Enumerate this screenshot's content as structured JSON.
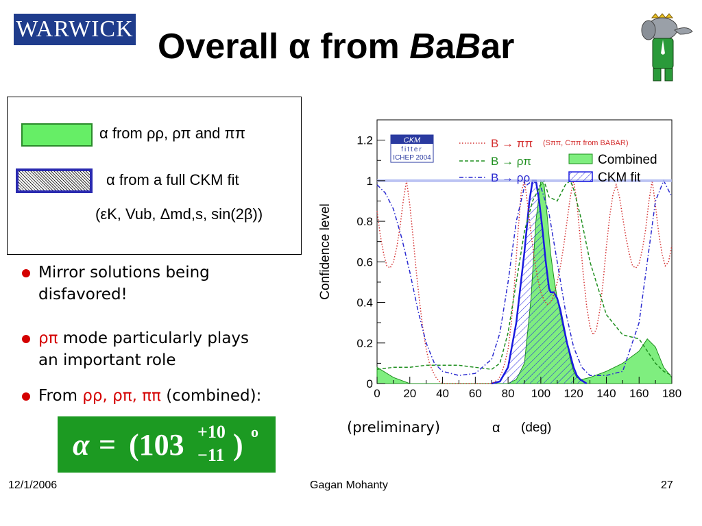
{
  "header": {
    "logo_text": "WARWICK",
    "title_prefix": "Overall α from ",
    "title_babar_1": "B",
    "title_babar_2": "a",
    "title_babar_3": "B",
    "title_babar_4": "ar"
  },
  "legend": {
    "item1": "α from ρρ, ρπ and ππ",
    "item2": "α from a full CKM fit",
    "item2_sub": "(εK, Vub, Δmd,s, sin(2β))"
  },
  "bullets": [
    {
      "text_a": "Mirror solutions being",
      "text_b": "disfavored!"
    },
    {
      "highlight": "ρπ",
      "text_a": " mode particularly plays",
      "text_b": "an important role"
    },
    {
      "text_a": "From ",
      "highlight": "ρρ, ρπ, ππ",
      "text_b": " (combined):"
    }
  ],
  "result": {
    "alpha": "α",
    "eq": "=",
    "value": "(103",
    "plus": "+10",
    "minus": "−11",
    "close": ")",
    "unit": "o"
  },
  "footer": {
    "date": "12/1/2006",
    "author": "Gagan Mohanty",
    "page": "27"
  },
  "chart_note": "(preliminary)",
  "chart_data": {
    "type": "line",
    "xlabel": "α",
    "xunit": "(deg)",
    "ylabel": "Confidence level",
    "xlim": [
      0,
      180
    ],
    "ylim": [
      0,
      1.3
    ],
    "x_ticks": [
      0,
      20,
      40,
      60,
      80,
      100,
      120,
      140,
      160,
      180
    ],
    "y_ticks": [
      0,
      0.2,
      0.4,
      0.6,
      0.8,
      1,
      1.2
    ],
    "y_tick_labels": [
      "0",
      "0.2",
      "0.4",
      "0.6",
      "0.8",
      "1",
      "1.2"
    ],
    "ckmfitter": {
      "line1": "CKM",
      "line2": "fitter",
      "line3": "ICHEP 2004"
    },
    "legend": {
      "pipi": "B → ππ",
      "pipi_note": "(Sππ, Cππ from BABAR)",
      "rhopi": "B → ρπ",
      "rhorho": "B → ρρ",
      "combined": "Combined",
      "ckmfit": "CKM fit"
    },
    "colors": {
      "pipi": "#d43030",
      "rhopi": "#1f8f1f",
      "rhorho": "#2a2ad0",
      "combined": "#7fee7f",
      "ckmfit": "#1a1ae0"
    },
    "series": [
      {
        "name": "B → ππ",
        "style": "dotted",
        "x": [
          0,
          2,
          4,
          6,
          8,
          10,
          12,
          14,
          16,
          18,
          20,
          22,
          24,
          26,
          28,
          30,
          32,
          34,
          36,
          38,
          40,
          42,
          44,
          46,
          48,
          50,
          52,
          54,
          56,
          58,
          60,
          62,
          64,
          66,
          68,
          70,
          72,
          74,
          76,
          78,
          80,
          82,
          84,
          86,
          88,
          90,
          92,
          94,
          96,
          98,
          100,
          102,
          104,
          106,
          108,
          110,
          112,
          114,
          116,
          118,
          120,
          122,
          124,
          126,
          128,
          130,
          132,
          134,
          136,
          138,
          140,
          142,
          144,
          146,
          148,
          150,
          152,
          154,
          156,
          158,
          160,
          162,
          164,
          166,
          168,
          170,
          172,
          174,
          176,
          178,
          180
        ],
        "y": [
          0.85,
          0.73,
          0.64,
          0.58,
          0.57,
          0.6,
          0.67,
          0.77,
          0.9,
          1.0,
          0.88,
          0.72,
          0.55,
          0.4,
          0.27,
          0.17,
          0.1,
          0.06,
          0.03,
          0.01,
          0.0,
          0.0,
          0.0,
          0.0,
          0.0,
          0.0,
          0.0,
          0.0,
          0.0,
          0.0,
          0.0,
          0.0,
          0.0,
          0.0,
          0.0,
          0.0,
          0.01,
          0.02,
          0.05,
          0.1,
          0.17,
          0.3,
          0.5,
          0.74,
          0.94,
          1.0,
          0.88,
          0.74,
          0.62,
          0.52,
          0.45,
          0.41,
          0.39,
          0.4,
          0.44,
          0.5,
          0.58,
          0.68,
          0.8,
          0.92,
          1.0,
          0.9,
          0.72,
          0.53,
          0.38,
          0.28,
          0.24,
          0.27,
          0.36,
          0.5,
          0.67,
          0.82,
          0.93,
          0.98,
          0.92,
          0.82,
          0.72,
          0.64,
          0.58,
          0.57,
          0.59,
          0.66,
          0.76,
          0.9,
          1.0,
          0.88,
          0.74,
          0.64,
          0.58,
          0.6,
          0.68
        ]
      },
      {
        "name": "B → ρπ",
        "style": "dashed",
        "x": [
          0,
          10,
          20,
          30,
          40,
          50,
          60,
          70,
          75,
          80,
          85,
          90,
          95,
          100,
          102,
          105,
          110,
          115,
          118,
          120,
          125,
          130,
          140,
          150,
          160,
          165,
          170,
          175,
          180
        ],
        "y": [
          0.07,
          0.08,
          0.08,
          0.09,
          0.09,
          0.09,
          0.08,
          0.07,
          0.1,
          0.25,
          0.5,
          0.75,
          0.9,
          0.98,
          1.0,
          0.92,
          0.9,
          0.98,
          1.0,
          0.96,
          0.8,
          0.6,
          0.34,
          0.24,
          0.22,
          0.16,
          0.1,
          0.06,
          0.04
        ]
      },
      {
        "name": "B → ρρ",
        "style": "dashdot",
        "x": [
          0,
          5,
          10,
          15,
          20,
          25,
          30,
          35,
          40,
          50,
          60,
          70,
          75,
          80,
          85,
          90,
          95,
          100,
          105,
          110,
          115,
          120,
          125,
          130,
          140,
          150,
          160,
          165,
          170,
          175,
          180
        ],
        "y": [
          0.98,
          0.94,
          0.86,
          0.72,
          0.55,
          0.36,
          0.2,
          0.1,
          0.06,
          0.04,
          0.05,
          0.12,
          0.25,
          0.5,
          0.8,
          0.97,
          1.0,
          0.97,
          0.84,
          0.6,
          0.36,
          0.18,
          0.08,
          0.04,
          0.04,
          0.06,
          0.3,
          0.6,
          0.9,
          1.0,
          0.92
        ]
      },
      {
        "name": "Combined",
        "style": "fill",
        "x": [
          0,
          10,
          20,
          30,
          40,
          50,
          60,
          70,
          80,
          85,
          90,
          94,
          97,
          100,
          102,
          104,
          106,
          108,
          110,
          112,
          114,
          116,
          118,
          120,
          122,
          125,
          130,
          140,
          150,
          155,
          160,
          165,
          170,
          175,
          180
        ],
        "y": [
          0.08,
          0.03,
          0.0,
          0.0,
          0.0,
          0.0,
          0.0,
          0.0,
          0.0,
          0.02,
          0.1,
          0.42,
          0.8,
          1.0,
          0.98,
          0.82,
          0.64,
          0.52,
          0.42,
          0.34,
          0.26,
          0.2,
          0.12,
          0.06,
          0.03,
          0.02,
          0.03,
          0.06,
          0.1,
          0.13,
          0.16,
          0.22,
          0.18,
          0.08,
          0.03
        ]
      },
      {
        "name": "CKM fit",
        "style": "hatch",
        "x": [
          70,
          75,
          80,
          85,
          90,
          93,
          95,
          97,
          99,
          101,
          103,
          105,
          106,
          108,
          110,
          112,
          114,
          116,
          118,
          120,
          122,
          124,
          126,
          128
        ],
        "y": [
          0.0,
          0.01,
          0.08,
          0.3,
          0.65,
          0.9,
          1.0,
          1.0,
          0.9,
          0.76,
          0.6,
          0.47,
          0.45,
          0.45,
          0.42,
          0.36,
          0.28,
          0.2,
          0.14,
          0.08,
          0.04,
          0.02,
          0.01,
          0.0
        ]
      }
    ]
  }
}
